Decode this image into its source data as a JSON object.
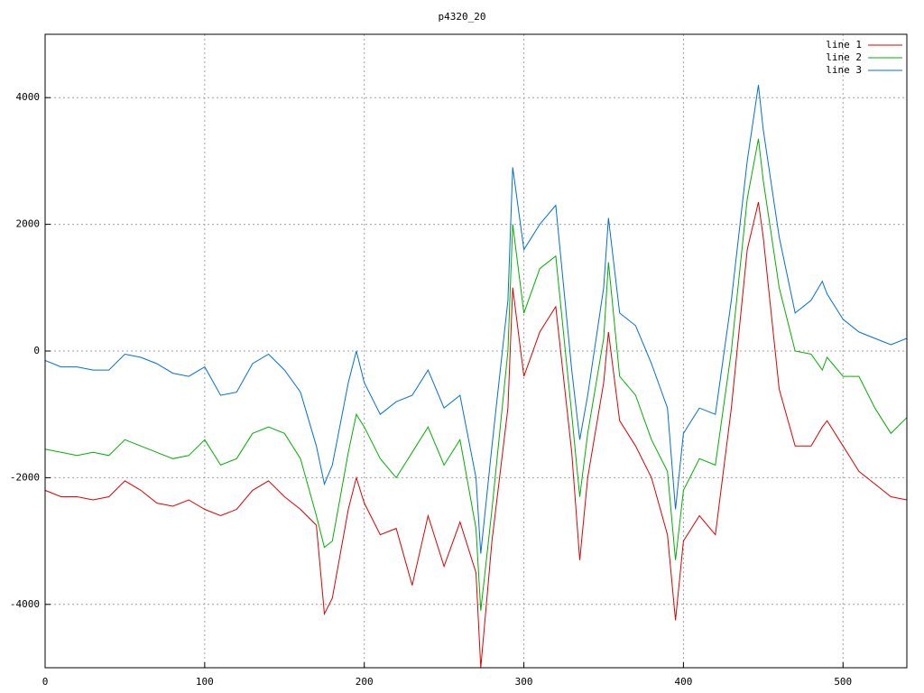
{
  "chart_data": {
    "type": "line",
    "title": "p4320_20",
    "x": [
      0,
      10,
      20,
      30,
      40,
      50,
      60,
      70,
      80,
      90,
      100,
      110,
      120,
      130,
      140,
      150,
      160,
      170,
      175,
      180,
      190,
      195,
      200,
      210,
      220,
      230,
      240,
      250,
      260,
      270,
      273,
      280,
      290,
      293,
      300,
      310,
      320,
      330,
      335,
      340,
      350,
      353,
      360,
      370,
      380,
      390,
      395,
      400,
      410,
      420,
      430,
      440,
      447,
      450,
      460,
      470,
      480,
      487,
      490,
      500,
      510,
      520,
      530,
      540
    ],
    "series": [
      {
        "name": "line 1",
        "color": "#e00000",
        "values": [
          -2200,
          -2300,
          -2300,
          -2350,
          -2300,
          -2050,
          -2200,
          -2400,
          -2450,
          -2350,
          -2500,
          -2600,
          -2500,
          -2200,
          -2050,
          -2300,
          -2500,
          -2750,
          -4150,
          -3900,
          -2500,
          -2000,
          -2400,
          -2900,
          -2800,
          -3700,
          -2600,
          -3400,
          -2700,
          -3500,
          -5000,
          -3000,
          -900,
          1000,
          -400,
          300,
          700,
          -1600,
          -3300,
          -2000,
          -500,
          300,
          -1100,
          -1500,
          -2000,
          -2900,
          -4250,
          -3000,
          -2600,
          -2900,
          -900,
          1600,
          2350,
          1800,
          -600,
          -1500,
          -1500,
          -1200,
          -1100,
          -1500,
          -1900,
          -2100,
          -2300,
          -2350
        ]
      },
      {
        "name": "line 2",
        "color": "#00b000",
        "values": [
          -1550,
          -1600,
          -1650,
          -1600,
          -1650,
          -1400,
          -1500,
          -1600,
          -1700,
          -1650,
          -1400,
          -1800,
          -1700,
          -1300,
          -1200,
          -1300,
          -1700,
          -2600,
          -3100,
          -3000,
          -1600,
          -1000,
          -1200,
          -1700,
          -2000,
          -1600,
          -1200,
          -1800,
          -1400,
          -2800,
          -4100,
          -2500,
          0,
          2000,
          600,
          1300,
          1500,
          -1000,
          -2300,
          -1300,
          200,
          1400,
          -400,
          -700,
          -1400,
          -1900,
          -3300,
          -2200,
          -1700,
          -1800,
          0,
          2400,
          3350,
          2700,
          1000,
          0,
          -50,
          -300,
          -100,
          -400,
          -400,
          -900,
          -1300,
          -1050
        ]
      },
      {
        "name": "line 3",
        "color": "#0070d0",
        "values": [
          -150,
          -250,
          -250,
          -300,
          -300,
          -50,
          -100,
          -200,
          -350,
          -400,
          -250,
          -700,
          -650,
          -200,
          -50,
          -300,
          -650,
          -1500,
          -2100,
          -1800,
          -500,
          0,
          -500,
          -1000,
          -800,
          -700,
          -300,
          -900,
          -700,
          -2000,
          -3200,
          -1500,
          800,
          2900,
          1600,
          2000,
          2300,
          -300,
          -1400,
          -700,
          1000,
          2100,
          600,
          400,
          -200,
          -900,
          -2500,
          -1300,
          -900,
          -1000,
          800,
          3000,
          4200,
          3500,
          1800,
          600,
          800,
          1100,
          900,
          500,
          300,
          200,
          100,
          200
        ]
      }
    ],
    "xlim": [
      0,
      540
    ],
    "xticks": [
      0,
      100,
      200,
      300,
      400,
      500
    ],
    "ylim": [
      -5000,
      5000
    ],
    "yticks": [
      -4000,
      -2000,
      0,
      2000,
      4000
    ],
    "grid": true,
    "legend": "top-right"
  }
}
